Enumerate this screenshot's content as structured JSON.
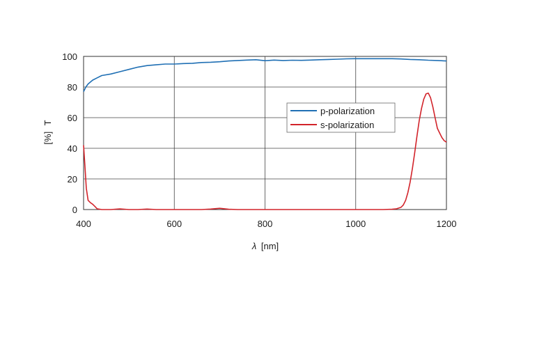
{
  "chart_data": {
    "type": "line",
    "xlabel_symbol": "λ",
    "xlabel_unit": "[nm]",
    "ylabel_symbol": "T",
    "ylabel_unit": "[%]",
    "xlim": [
      400,
      1200
    ],
    "ylim": [
      0,
      100
    ],
    "xticks": [
      400,
      600,
      800,
      1000,
      1200
    ],
    "yticks": [
      0,
      20,
      40,
      60,
      80,
      100
    ],
    "grid": true,
    "legend_position": "center-right",
    "series": [
      {
        "name": "p-polarization",
        "color": "#1f6fb4",
        "x": [
          400,
          405,
          410,
          420,
          430,
          440,
          460,
          480,
          500,
          520,
          540,
          560,
          580,
          600,
          620,
          640,
          660,
          680,
          700,
          720,
          740,
          760,
          780,
          800,
          820,
          840,
          860,
          880,
          900,
          920,
          940,
          960,
          980,
          1000,
          1020,
          1040,
          1060,
          1080,
          1100,
          1120,
          1140,
          1160,
          1180,
          1200
        ],
        "y": [
          77,
          80,
          82,
          84.5,
          86,
          87.5,
          88.5,
          90,
          91.5,
          93,
          94,
          94.5,
          95,
          95,
          95.3,
          95.5,
          96,
          96.2,
          96.5,
          97,
          97.3,
          97.6,
          97.8,
          97.2,
          97.6,
          97.3,
          97.5,
          97.4,
          97.6,
          97.8,
          98,
          98.2,
          98.4,
          98.5,
          98.5,
          98.5,
          98.5,
          98.5,
          98.3,
          98,
          97.8,
          97.5,
          97.3,
          97
        ]
      },
      {
        "name": "s-polarization",
        "color": "#d2232a",
        "x": [
          400,
          403,
          406,
          410,
          415,
          420,
          425,
          430,
          440,
          460,
          480,
          500,
          520,
          540,
          560,
          580,
          600,
          620,
          640,
          660,
          680,
          700,
          720,
          740,
          760,
          780,
          800,
          820,
          840,
          860,
          880,
          900,
          920,
          940,
          960,
          980,
          1000,
          1020,
          1040,
          1060,
          1080,
          1090,
          1100,
          1105,
          1110,
          1115,
          1120,
          1125,
          1130,
          1135,
          1140,
          1145,
          1150,
          1155,
          1160,
          1165,
          1170,
          1175,
          1180,
          1185,
          1190,
          1195,
          1200
        ],
        "y": [
          42,
          28,
          14,
          6,
          4.5,
          3.5,
          2,
          0.5,
          0,
          0,
          0.4,
          0,
          0,
          0.3,
          0,
          0,
          0,
          0,
          0,
          0,
          0.3,
          0.8,
          0.2,
          0,
          0,
          0,
          0,
          0,
          0,
          0,
          0,
          0,
          0,
          0,
          0,
          0,
          0,
          0,
          0,
          0,
          0.2,
          0.5,
          1.5,
          3,
          6,
          11,
          18,
          27,
          37,
          48,
          58,
          66,
          72,
          75.5,
          76,
          73,
          67,
          60,
          53,
          50,
          47,
          45,
          44
        ]
      }
    ]
  }
}
